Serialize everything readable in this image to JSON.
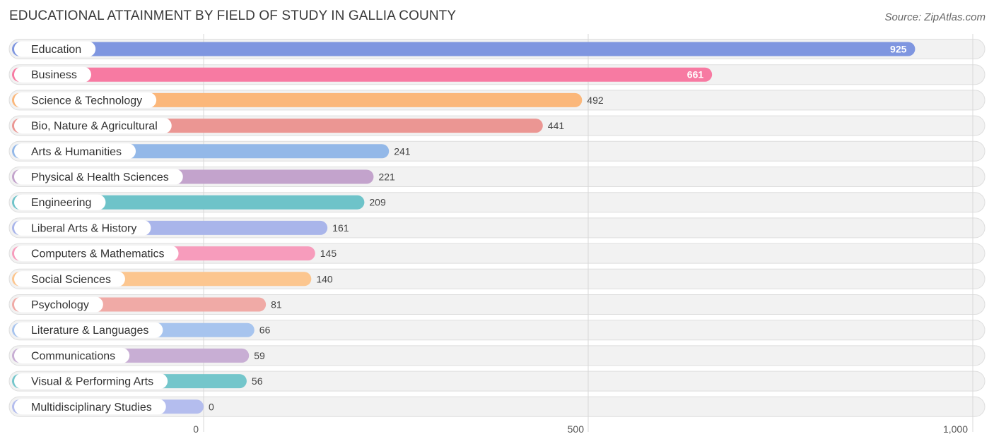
{
  "header": {
    "title": "EDUCATIONAL ATTAINMENT BY FIELD OF STUDY IN GALLIA COUNTY",
    "source": "Source: ZipAtlas.com"
  },
  "chart_data": {
    "type": "bar",
    "orientation": "horizontal",
    "title": "EDUCATIONAL ATTAINMENT BY FIELD OF STUDY IN GALLIA COUNTY",
    "xlabel": "",
    "ylabel": "",
    "xlim": [
      0,
      1000
    ],
    "grid": true,
    "ticks": [
      {
        "value": 0,
        "label": "0"
      },
      {
        "value": 500,
        "label": "500"
      },
      {
        "value": 1000,
        "label": "1,000"
      }
    ],
    "categories": [
      "Education",
      "Business",
      "Science & Technology",
      "Bio, Nature & Agricultural",
      "Arts & Humanities",
      "Physical & Health Sciences",
      "Engineering",
      "Liberal Arts & History",
      "Computers & Mathematics",
      "Social Sciences",
      "Psychology",
      "Literature & Languages",
      "Communications",
      "Visual & Performing Arts",
      "Multidisciplinary Studies"
    ],
    "values": [
      925,
      661,
      492,
      441,
      241,
      221,
      209,
      161,
      145,
      140,
      81,
      66,
      59,
      56,
      0
    ],
    "value_labels": [
      "925",
      "661",
      "492",
      "441",
      "241",
      "221",
      "209",
      "161",
      "145",
      "140",
      "81",
      "66",
      "59",
      "56",
      "0"
    ],
    "colors": [
      "#7f96e0",
      "#f77aa2",
      "#fbb77a",
      "#eb9693",
      "#93b8e8",
      "#c3a3cc",
      "#6ec3c9",
      "#a9b5ea",
      "#f79cbc",
      "#fcc68f",
      "#f0aaa6",
      "#a7c4ee",
      "#c8aed4",
      "#74c6cb",
      "#b4bdee"
    ]
  }
}
